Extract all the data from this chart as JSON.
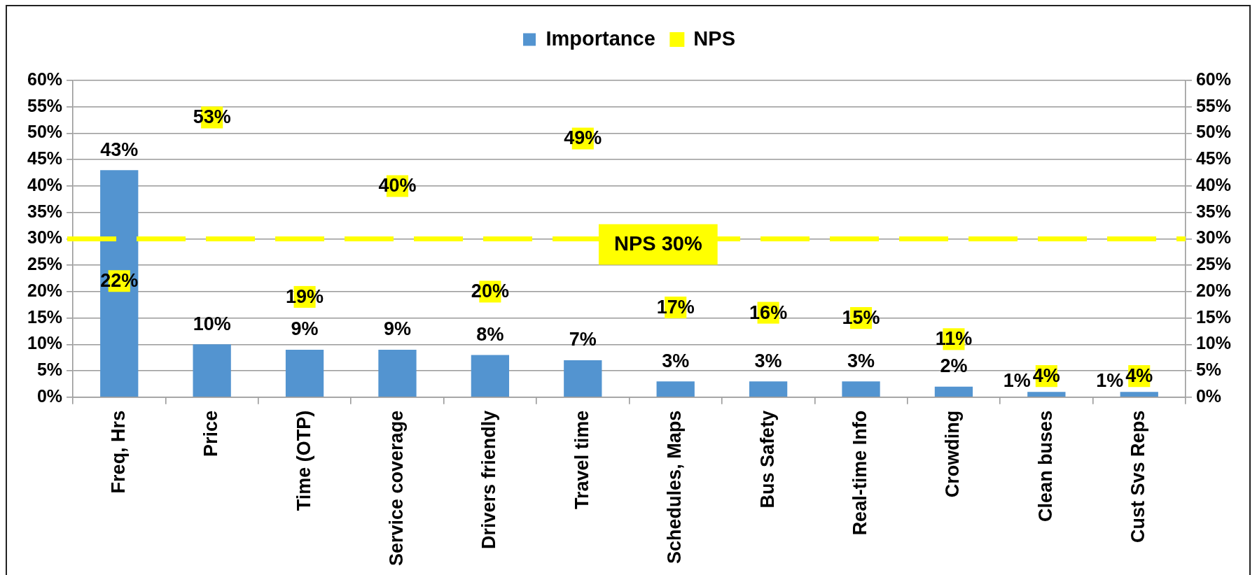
{
  "chart_data": {
    "type": "bar",
    "categories": [
      "Freq, Hrs",
      "Price",
      "Time (OTP)",
      "Service coverage",
      "Drivers friendly",
      "Travel time",
      "Schedules, Maps",
      "Bus Safety",
      "Real-time Info",
      "Crowding",
      "Clean buses",
      "Cust Svs Reps"
    ],
    "series": [
      {
        "name": "Importance",
        "color": "#5394d0",
        "values": [
          43,
          10,
          9,
          9,
          8,
          7,
          3,
          3,
          3,
          2,
          1,
          1
        ],
        "value_labels": [
          "43%",
          "10%",
          "9%",
          "9%",
          "8%",
          "7%",
          "3%",
          "3%",
          "3%",
          "2%",
          "1%",
          "1%"
        ]
      },
      {
        "name": "NPS",
        "type": "scatter",
        "color": "#ffff00",
        "marker": "square",
        "x": [
          "Freq, Hrs",
          "Price",
          "Time (OTP)",
          "Service coverage",
          "Drivers friendly",
          "Travel time",
          "Schedules, Maps",
          "Bus Safety",
          "Real-time Info",
          "Crowding",
          "Clean buses",
          "Cust Svs Reps"
        ],
        "values": [
          22,
          53,
          19,
          40,
          20,
          49,
          17,
          16,
          15,
          11,
          4,
          4
        ],
        "value_labels": [
          "22%",
          "53%",
          "19%",
          "40%",
          "20%",
          "49%",
          "17%",
          "16%",
          "15%",
          "11%",
          "4%",
          "4%"
        ]
      }
    ],
    "ylim": [
      0,
      60
    ],
    "yticks": [
      {
        "value": 0,
        "label": "0%"
      },
      {
        "value": 5,
        "label": "5%"
      },
      {
        "value": 10,
        "label": "10%"
      },
      {
        "value": 15,
        "label": "15%"
      },
      {
        "value": 20,
        "label": "20%"
      },
      {
        "value": 25,
        "label": "25%"
      },
      {
        "value": 30,
        "label": "30%"
      },
      {
        "value": 35,
        "label": "35%"
      },
      {
        "value": 40,
        "label": "40%"
      },
      {
        "value": 45,
        "label": "45%"
      },
      {
        "value": 50,
        "label": "50%"
      },
      {
        "value": 55,
        "label": "55%"
      },
      {
        "value": 60,
        "label": "60%"
      }
    ],
    "y2lim": [
      0,
      60
    ],
    "y2ticks": [
      {
        "value": 0,
        "label": "0%"
      },
      {
        "value": 5,
        "label": "5%"
      },
      {
        "value": 10,
        "label": "10%"
      },
      {
        "value": 15,
        "label": "15%"
      },
      {
        "value": 20,
        "label": "20%"
      },
      {
        "value": 25,
        "label": "25%"
      },
      {
        "value": 30,
        "label": "30%"
      },
      {
        "value": 35,
        "label": "35%"
      },
      {
        "value": 40,
        "label": "40%"
      },
      {
        "value": 45,
        "label": "45%"
      },
      {
        "value": 50,
        "label": "50%"
      },
      {
        "value": 55,
        "label": "55%"
      },
      {
        "value": 60,
        "label": "60%"
      }
    ],
    "ref_lines": [
      {
        "axis": "y",
        "value": 30,
        "label": "NPS 30%",
        "color": "#ffff00",
        "line_style": "dashed"
      }
    ],
    "grid": "y",
    "legend": "top"
  }
}
